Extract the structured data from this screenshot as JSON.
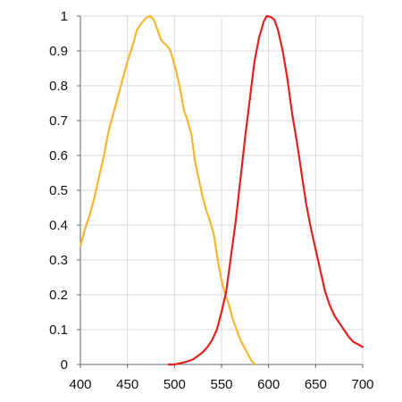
{
  "chart_data": {
    "type": "line",
    "title": "",
    "xlabel": "",
    "ylabel": "",
    "xlim": [
      400,
      700
    ],
    "ylim": [
      0,
      1
    ],
    "grid": true,
    "legend": "none",
    "x_ticks": [
      400,
      450,
      500,
      550,
      600,
      650,
      700
    ],
    "y_ticks": [
      0,
      0.1,
      0.2,
      0.3,
      0.4,
      0.5,
      0.6,
      0.7,
      0.8,
      0.9,
      1
    ],
    "x_tick_labels": [
      "400",
      "450",
      "500",
      "550",
      "600",
      "650",
      "700"
    ],
    "y_tick_labels": [
      "0",
      "0.1",
      "0.2",
      "0.3",
      "0.4",
      "0.5",
      "0.6",
      "0.7",
      "0.8",
      "0.9",
      "1"
    ],
    "series": [
      {
        "color": "#f5b731",
        "points": [
          [
            400,
            0.34
          ],
          [
            405,
            0.39
          ],
          [
            410,
            0.43
          ],
          [
            415,
            0.48
          ],
          [
            420,
            0.54
          ],
          [
            425,
            0.6
          ],
          [
            430,
            0.67
          ],
          [
            435,
            0.72
          ],
          [
            440,
            0.77
          ],
          [
            445,
            0.82
          ],
          [
            450,
            0.87
          ],
          [
            455,
            0.91
          ],
          [
            460,
            0.96
          ],
          [
            465,
            0.98
          ],
          [
            470,
            0.995
          ],
          [
            474,
            1.0
          ],
          [
            478,
            0.99
          ],
          [
            482,
            0.96
          ],
          [
            486,
            0.93
          ],
          [
            490,
            0.92
          ],
          [
            495,
            0.905
          ],
          [
            498,
            0.88
          ],
          [
            502,
            0.84
          ],
          [
            506,
            0.79
          ],
          [
            510,
            0.73
          ],
          [
            514,
            0.7
          ],
          [
            518,
            0.66
          ],
          [
            522,
            0.58
          ],
          [
            526,
            0.53
          ],
          [
            530,
            0.48
          ],
          [
            534,
            0.44
          ],
          [
            538,
            0.41
          ],
          [
            542,
            0.37
          ],
          [
            546,
            0.3
          ],
          [
            550,
            0.24
          ],
          [
            554,
            0.2
          ],
          [
            558,
            0.17
          ],
          [
            562,
            0.13
          ],
          [
            566,
            0.1
          ],
          [
            570,
            0.07
          ],
          [
            574,
            0.05
          ],
          [
            578,
            0.03
          ],
          [
            582,
            0.01
          ],
          [
            586,
            0.0
          ]
        ]
      },
      {
        "color": "#e8201d",
        "points": [
          [
            494,
            0.0
          ],
          [
            500,
            0.0
          ],
          [
            505,
            0.003
          ],
          [
            510,
            0.006
          ],
          [
            515,
            0.01
          ],
          [
            520,
            0.015
          ],
          [
            525,
            0.025
          ],
          [
            530,
            0.035
          ],
          [
            535,
            0.05
          ],
          [
            540,
            0.07
          ],
          [
            545,
            0.1
          ],
          [
            550,
            0.15
          ],
          [
            555,
            0.21
          ],
          [
            560,
            0.31
          ],
          [
            565,
            0.41
          ],
          [
            570,
            0.53
          ],
          [
            575,
            0.65
          ],
          [
            580,
            0.76
          ],
          [
            585,
            0.87
          ],
          [
            590,
            0.94
          ],
          [
            595,
            0.985
          ],
          [
            598,
            1.0
          ],
          [
            602,
            0.998
          ],
          [
            606,
            0.99
          ],
          [
            610,
            0.96
          ],
          [
            615,
            0.9
          ],
          [
            620,
            0.82
          ],
          [
            625,
            0.72
          ],
          [
            630,
            0.64
          ],
          [
            635,
            0.55
          ],
          [
            640,
            0.46
          ],
          [
            645,
            0.39
          ],
          [
            650,
            0.33
          ],
          [
            655,
            0.27
          ],
          [
            660,
            0.21
          ],
          [
            665,
            0.17
          ],
          [
            670,
            0.14
          ],
          [
            675,
            0.12
          ],
          [
            680,
            0.1
          ],
          [
            685,
            0.08
          ],
          [
            690,
            0.065
          ],
          [
            695,
            0.058
          ],
          [
            700,
            0.05
          ]
        ]
      }
    ]
  }
}
